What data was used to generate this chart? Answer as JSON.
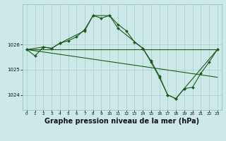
{
  "bg_color": "#cce8e8",
  "grid_color": "#aacccc",
  "line_color": "#1a5c1a",
  "marker_color": "#1a5c1a",
  "xlabel": "Graphe pression niveau de la mer (hPa)",
  "xlabel_fontsize": 7.0,
  "ylim": [
    1023.4,
    1027.6
  ],
  "yticks": [
    1024,
    1025,
    1026
  ],
  "xticks": [
    0,
    1,
    2,
    3,
    4,
    5,
    6,
    7,
    8,
    9,
    10,
    11,
    12,
    13,
    14,
    15,
    16,
    17,
    18,
    19,
    20,
    21,
    22,
    23
  ],
  "line1_x": [
    0,
    1,
    2,
    3,
    4,
    5,
    6,
    7,
    8,
    9,
    10,
    11,
    12,
    13,
    14,
    15,
    16,
    17,
    18,
    19,
    20,
    21,
    22,
    23
  ],
  "line1_y": [
    1025.8,
    1025.55,
    1025.9,
    1025.85,
    1026.05,
    1026.15,
    1026.3,
    1026.6,
    1027.15,
    1027.05,
    1027.15,
    1026.8,
    1026.55,
    1026.1,
    1025.85,
    1025.35,
    1024.75,
    1024.0,
    1023.85,
    1024.25,
    1024.3,
    1024.85,
    1025.3,
    1025.8
  ],
  "line2_x": [
    0,
    2,
    3,
    4,
    7,
    8,
    10,
    11,
    14,
    15,
    16,
    17,
    18,
    19,
    23
  ],
  "line2_y": [
    1025.8,
    1025.9,
    1025.85,
    1026.05,
    1026.55,
    1027.15,
    1027.15,
    1026.65,
    1025.85,
    1025.3,
    1024.7,
    1024.0,
    1023.85,
    1024.25,
    1025.8
  ],
  "line3_x": [
    0,
    14,
    23
  ],
  "line3_y": [
    1025.8,
    1025.8,
    1025.8
  ],
  "line4_x": [
    0,
    23
  ],
  "line4_y": [
    1025.8,
    1024.7
  ]
}
